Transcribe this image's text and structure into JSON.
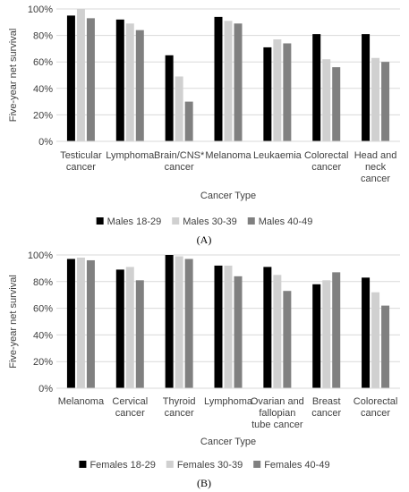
{
  "colors": {
    "series": [
      "#000000",
      "#d0d0d0",
      "#808080"
    ],
    "grid": "#d9d9d9",
    "text": "#404040"
  },
  "chart_data": [
    {
      "type": "bar",
      "panel_label": "(A)",
      "title": "",
      "xlabel": "Cancer Type",
      "ylabel": "Five-year net survival",
      "ylim": [
        0,
        100
      ],
      "yticks": [
        "0%",
        "20%",
        "40%",
        "60%",
        "80%",
        "100%"
      ],
      "grid": true,
      "legend": "bottom",
      "categories": [
        [
          "Testicular",
          "cancer"
        ],
        [
          "Lymphoma"
        ],
        [
          "Brain/CNS*",
          "cancer"
        ],
        [
          "Melanoma"
        ],
        [
          "Leukaemia"
        ],
        [
          "Colorectal",
          "cancer"
        ],
        [
          "Head and",
          "neck",
          "cancer"
        ]
      ],
      "series": [
        {
          "name": "Males 18-29",
          "values": [
            95,
            92,
            65,
            94,
            71,
            81,
            81
          ]
        },
        {
          "name": "Males 30-39",
          "values": [
            100,
            89,
            49,
            91,
            77,
            62,
            63
          ]
        },
        {
          "name": "Males 40-49",
          "values": [
            93,
            84,
            30,
            89,
            74,
            56,
            60
          ]
        }
      ]
    },
    {
      "type": "bar",
      "panel_label": "(B)",
      "title": "",
      "xlabel": "Cancer Type",
      "ylabel": "Five-year net survival",
      "ylim": [
        0,
        100
      ],
      "yticks": [
        "0%",
        "20%",
        "40%",
        "60%",
        "80%",
        "100%"
      ],
      "grid": true,
      "legend": "bottom",
      "categories": [
        [
          "Melanoma"
        ],
        [
          "Cervical",
          "cancer"
        ],
        [
          "Thyroid",
          "cancer"
        ],
        [
          "Lymphoma"
        ],
        [
          "Ovarian and",
          "fallopian",
          "tube cancer"
        ],
        [
          "Breast",
          "cancer"
        ],
        [
          "Colorectal",
          "cancer"
        ]
      ],
      "series": [
        {
          "name": "Females 18-29",
          "values": [
            97,
            89,
            100,
            92,
            91,
            78,
            83
          ]
        },
        {
          "name": "Females 30-39",
          "values": [
            98,
            91,
            99,
            92,
            85,
            81,
            72
          ]
        },
        {
          "name": "Females 40-49",
          "values": [
            96,
            81,
            97,
            84,
            73,
            87,
            62
          ]
        }
      ]
    }
  ]
}
